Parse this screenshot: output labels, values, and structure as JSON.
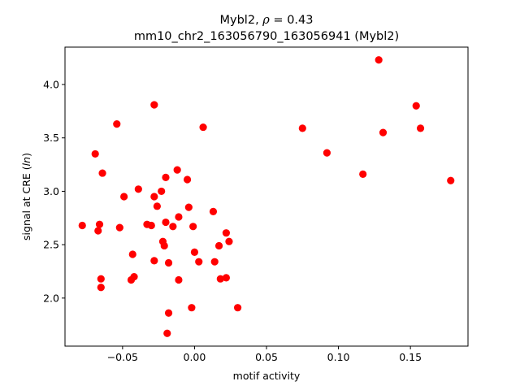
{
  "chart_data": {
    "type": "scatter",
    "title_line1_prefix": "Mybl2, ",
    "title_line1_symbol": "ρ",
    "title_line1_suffix": " = 0.43",
    "title_line2": "mm10_chr2_163056790_163056941 (Mybl2)",
    "xlabel": "motif activity",
    "ylabel_prefix": "signal at CRE (",
    "ylabel_italic": "ln",
    "ylabel_suffix": ")",
    "xlim": [
      -0.09,
      0.19
    ],
    "ylim": [
      1.55,
      4.35
    ],
    "xticks": [
      -0.05,
      0.0,
      0.05,
      0.1,
      0.15
    ],
    "xtick_labels": [
      "−0.05",
      "0.00",
      "0.05",
      "0.10",
      "0.15"
    ],
    "yticks": [
      2.0,
      2.5,
      3.0,
      3.5,
      4.0
    ],
    "ytick_labels": [
      "2.0",
      "2.5",
      "3.0",
      "3.5",
      "4.0"
    ],
    "grid": false,
    "point_color": "#ff0000",
    "points": [
      [
        -0.078,
        2.68
      ],
      [
        -0.069,
        3.35
      ],
      [
        -0.067,
        2.63
      ],
      [
        -0.066,
        2.69
      ],
      [
        -0.065,
        2.18
      ],
      [
        -0.065,
        2.1
      ],
      [
        -0.064,
        3.17
      ],
      [
        -0.054,
        3.63
      ],
      [
        -0.052,
        2.66
      ],
      [
        -0.049,
        2.95
      ],
      [
        -0.044,
        2.17
      ],
      [
        -0.043,
        2.41
      ],
      [
        -0.042,
        2.2
      ],
      [
        -0.039,
        3.02
      ],
      [
        -0.033,
        2.69
      ],
      [
        -0.03,
        2.68
      ],
      [
        -0.028,
        3.81
      ],
      [
        -0.028,
        2.95
      ],
      [
        -0.028,
        2.35
      ],
      [
        -0.026,
        2.86
      ],
      [
        -0.023,
        3.0
      ],
      [
        -0.022,
        2.53
      ],
      [
        -0.021,
        2.49
      ],
      [
        -0.02,
        3.13
      ],
      [
        -0.02,
        2.71
      ],
      [
        -0.018,
        2.33
      ],
      [
        -0.018,
        1.86
      ],
      [
        -0.019,
        1.67
      ],
      [
        -0.015,
        2.67
      ],
      [
        -0.012,
        3.2
      ],
      [
        -0.011,
        2.76
      ],
      [
        -0.011,
        2.17
      ],
      [
        -0.005,
        3.11
      ],
      [
        -0.004,
        2.85
      ],
      [
        -0.002,
        1.91
      ],
      [
        -0.001,
        2.67
      ],
      [
        0.0,
        2.43
      ],
      [
        0.003,
        2.34
      ],
      [
        0.006,
        3.6
      ],
      [
        0.013,
        2.81
      ],
      [
        0.014,
        2.34
      ],
      [
        0.017,
        2.49
      ],
      [
        0.018,
        2.18
      ],
      [
        0.022,
        2.61
      ],
      [
        0.022,
        2.19
      ],
      [
        0.024,
        2.53
      ],
      [
        0.03,
        1.91
      ],
      [
        0.075,
        3.59
      ],
      [
        0.092,
        3.36
      ],
      [
        0.117,
        3.16
      ],
      [
        0.128,
        4.23
      ],
      [
        0.131,
        3.55
      ],
      [
        0.154,
        3.8
      ],
      [
        0.157,
        3.59
      ],
      [
        0.178,
        3.1
      ]
    ]
  }
}
